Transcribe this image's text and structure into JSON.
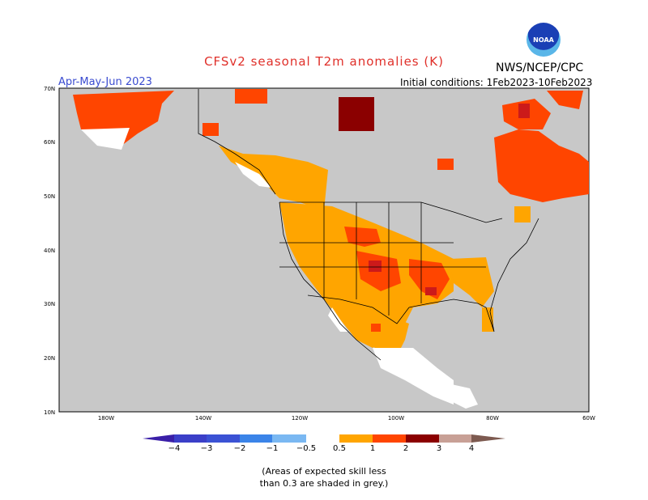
{
  "header": {
    "title": "CFSv2 seasonal T2m anomalies (K)",
    "agency": "NWS/NCEP/CPC",
    "logo_text": "NOAA",
    "season": "Apr-May-Jun 2023",
    "initial_conditions": "Initial conditions: 1Feb2023-10Feb2023"
  },
  "map": {
    "background_color": "#c8c8c8",
    "lat_labels": [
      "70N",
      "60N",
      "50N",
      "40N",
      "30N",
      "20N",
      "10N"
    ],
    "lon_labels": [
      "180W",
      "140W",
      "120W",
      "100W",
      "80W",
      "60W"
    ]
  },
  "colorbar": {
    "labels": [
      "−4",
      "−3",
      "−2",
      "−1",
      "−0.5",
      "0.5",
      "1",
      "2",
      "3",
      "4"
    ],
    "colors": [
      "#3a1fa8",
      "#3b52d4",
      "#3b84e8",
      "#7ab8f2",
      "#ffffff",
      "#ffa500",
      "#ff4500",
      "#cc1a1a",
      "#8b0000",
      "#c8a096",
      "#7d5a50"
    ]
  },
  "note": {
    "line1": "(Areas of expected skill less",
    "line2": "than 0.3 are shaded in grey.)"
  }
}
